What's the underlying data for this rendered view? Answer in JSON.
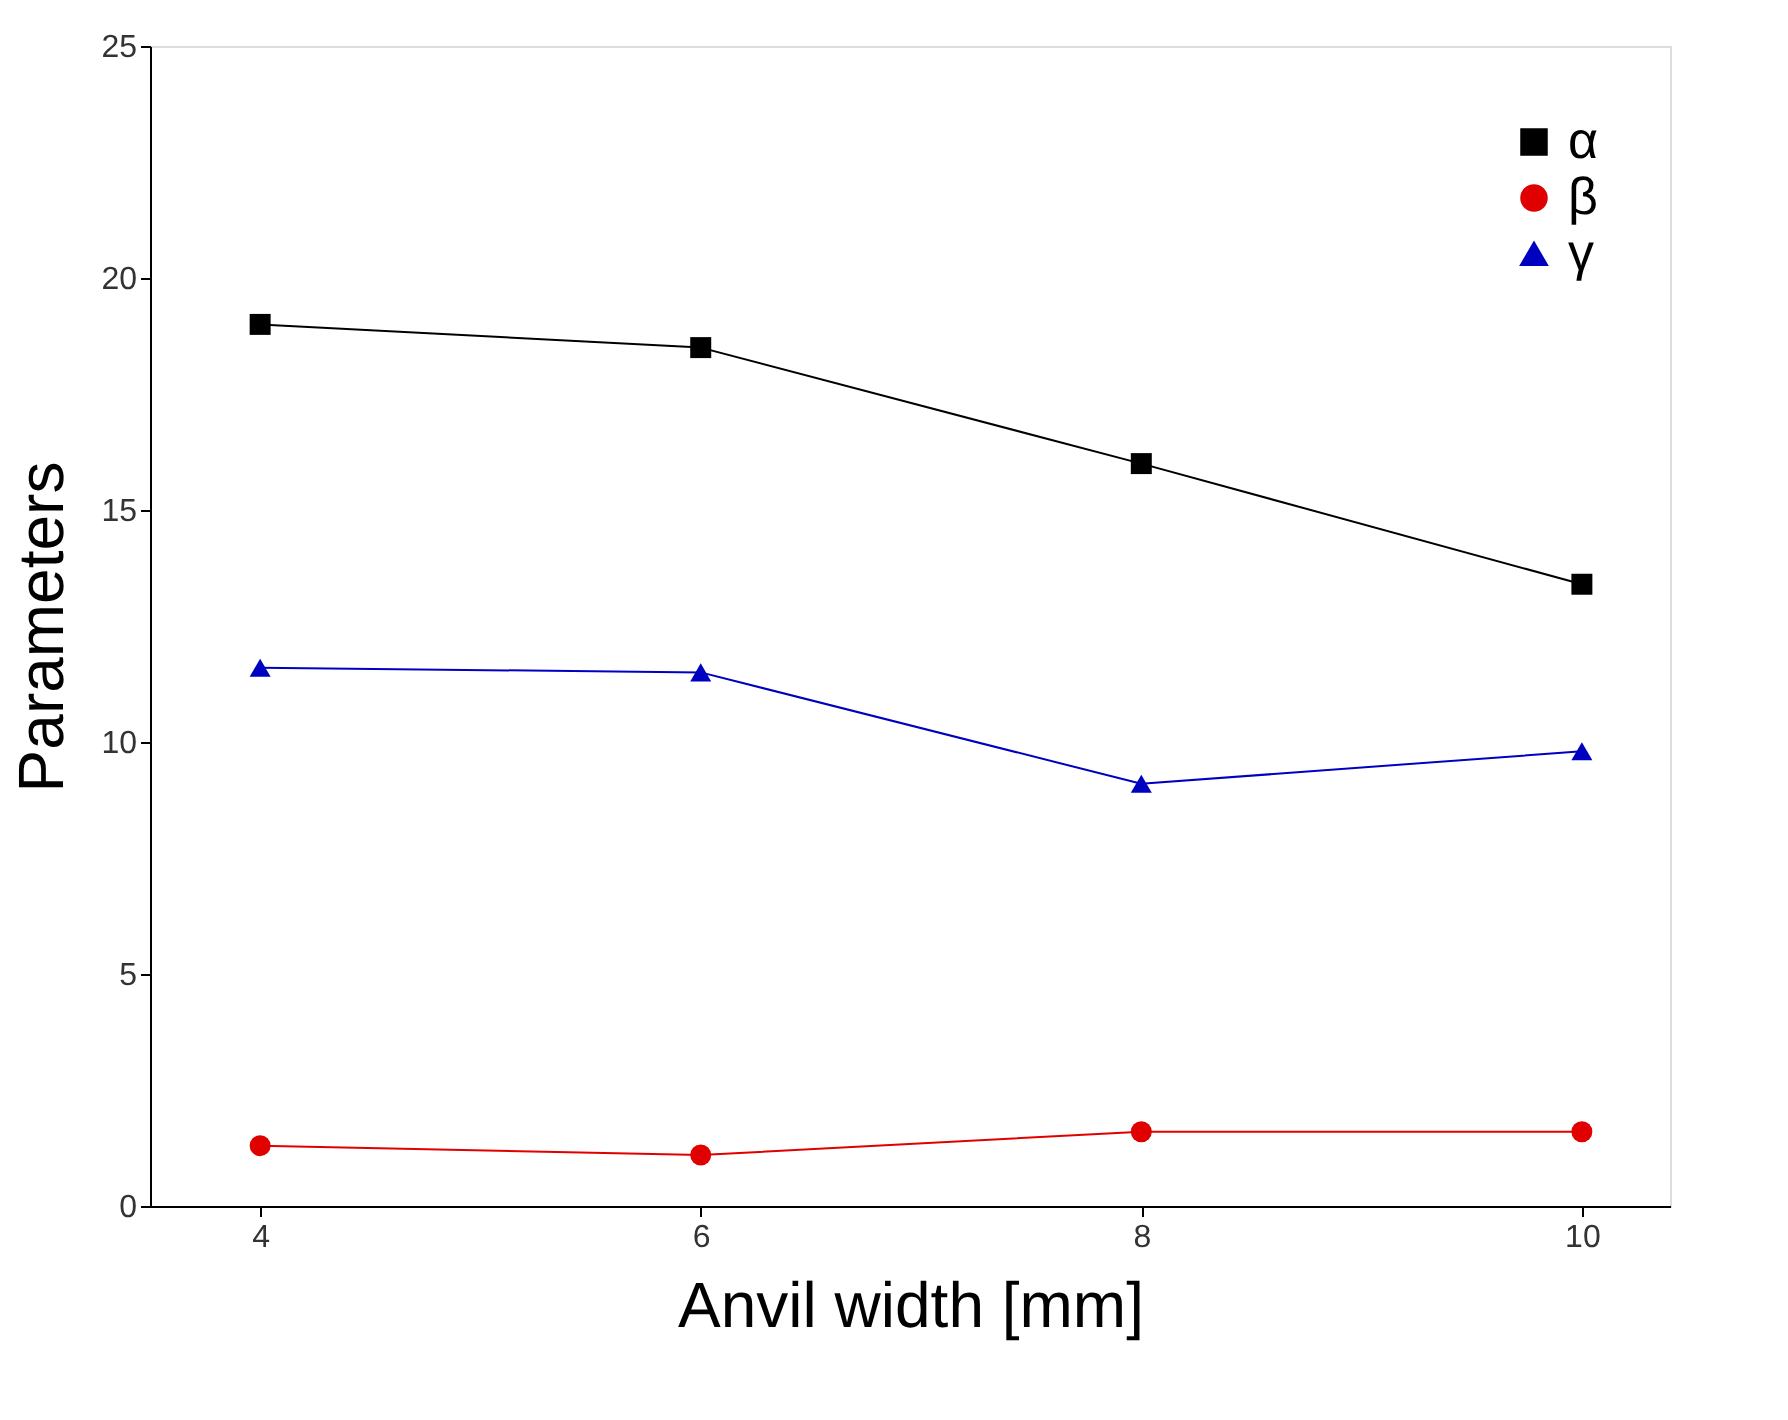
{
  "chart_data": {
    "type": "line",
    "xlabel": "Anvil width [mm]",
    "ylabel": "Parameters",
    "x": [
      4,
      6,
      8,
      10
    ],
    "series": [
      {
        "name": "α",
        "color": "#000000",
        "marker": "square",
        "values": [
          19.0,
          18.5,
          16.0,
          13.4
        ]
      },
      {
        "name": "β",
        "color": "#e00000",
        "marker": "circle",
        "values": [
          1.3,
          1.1,
          1.6,
          1.6
        ]
      },
      {
        "name": "γ",
        "color": "#0000c0",
        "marker": "triangle",
        "values": [
          11.6,
          11.5,
          9.1,
          9.8
        ]
      }
    ],
    "xlim": [
      3.5,
      10.4
    ],
    "xticks": [
      4,
      6,
      8,
      10
    ],
    "ylim": [
      0,
      25
    ],
    "yticks": [
      0,
      5,
      10,
      15,
      20,
      25
    ],
    "grid": false,
    "legend": "top right",
    "line_style": "solid"
  }
}
